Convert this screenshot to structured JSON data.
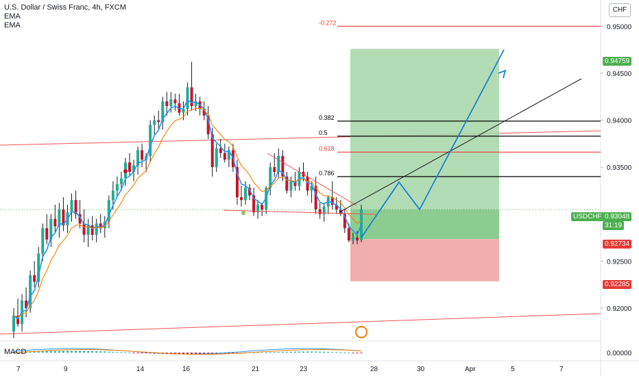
{
  "header": {
    "title": "U.S. Dollar / Swiss Franc, 4h, FXCM",
    "indicator_1": "EMA",
    "indicator_2": "EMA"
  },
  "currency_button": "CHF",
  "price_axis": {
    "ticks": [
      "0.95000",
      "0.94500",
      "0.94000",
      "0.93500",
      "0.92500",
      "0.92000"
    ],
    "target_label": "0.94759",
    "symbol": "USDCHF",
    "last_price": "0.93048",
    "countdown": "31:19",
    "entry_label": "0.92734",
    "stop_label": "0.92285",
    "macd_tick": "0.00000"
  },
  "time_axis": {
    "ticks": [
      "7",
      "9",
      "14",
      "16",
      "21",
      "23",
      "28",
      "30",
      "Apr",
      "5",
      "7"
    ]
  },
  "fib": {
    "levels": [
      {
        "label": "-0.272",
        "price": 0.95
      },
      {
        "label": "0.382",
        "price": 0.9399
      },
      {
        "label": "0.5",
        "price": 0.9383
      },
      {
        "label": "0.618",
        "price": 0.9366
      },
      {
        "label": "0.786",
        "price": 0.934
      }
    ]
  },
  "macd": {
    "label": "MACD"
  },
  "colors": {
    "up": "#22ab94",
    "down": "#c4142d",
    "ema_fast": "#2196f3",
    "ema_slow": "#f57c00",
    "profit_zone": "#a5d6a7",
    "loss_zone": "#ef9a9a",
    "fib_red": "#e53935",
    "fib_black": "#000000",
    "arrow": "#1e7ed4",
    "channel": "#ef5350",
    "price_pill": "#4caf50",
    "stop_pill": "#e53935"
  },
  "chart_data": {
    "type": "candlestick",
    "ylim": [
      0.9165,
      0.9525
    ],
    "x_ticks": [
      "7",
      "9",
      "14",
      "16",
      "21",
      "23",
      "28",
      "30",
      "Apr",
      "5",
      "7"
    ],
    "candles": [
      [
        0.9175,
        0.92,
        0.9168,
        0.9192
      ],
      [
        0.9192,
        0.921,
        0.918,
        0.9183
      ],
      [
        0.9183,
        0.9215,
        0.9175,
        0.9208
      ],
      [
        0.9208,
        0.9222,
        0.919,
        0.92
      ],
      [
        0.92,
        0.924,
        0.9195,
        0.9235
      ],
      [
        0.9235,
        0.925,
        0.9222,
        0.9228
      ],
      [
        0.9228,
        0.9265,
        0.9222,
        0.9258
      ],
      [
        0.9258,
        0.929,
        0.925,
        0.9285
      ],
      [
        0.9285,
        0.93,
        0.9268,
        0.9273
      ],
      [
        0.9273,
        0.93,
        0.9265,
        0.9295
      ],
      [
        0.9295,
        0.931,
        0.928,
        0.9287
      ],
      [
        0.9287,
        0.9312,
        0.9275,
        0.9305
      ],
      [
        0.9305,
        0.9318,
        0.9282,
        0.9288
      ],
      [
        0.9288,
        0.931,
        0.928,
        0.9302
      ],
      [
        0.9302,
        0.9322,
        0.9292,
        0.9315
      ],
      [
        0.9315,
        0.9325,
        0.9295,
        0.93
      ],
      [
        0.93,
        0.9315,
        0.9285,
        0.929
      ],
      [
        0.929,
        0.9305,
        0.927,
        0.9278
      ],
      [
        0.9278,
        0.9295,
        0.9265,
        0.9288
      ],
      [
        0.9288,
        0.9298,
        0.9272,
        0.9278
      ],
      [
        0.9278,
        0.9295,
        0.927,
        0.929
      ],
      [
        0.929,
        0.93,
        0.928,
        0.9285
      ],
      [
        0.9285,
        0.9298,
        0.9275,
        0.9292
      ],
      [
        0.9292,
        0.932,
        0.9285,
        0.9315
      ],
      [
        0.9315,
        0.9335,
        0.9305,
        0.9325
      ],
      [
        0.9325,
        0.934,
        0.9318,
        0.9332
      ],
      [
        0.9332,
        0.9345,
        0.9325,
        0.9338
      ],
      [
        0.9338,
        0.936,
        0.933,
        0.9355
      ],
      [
        0.9355,
        0.9365,
        0.934,
        0.9345
      ],
      [
        0.9345,
        0.9358,
        0.9335,
        0.9352
      ],
      [
        0.9352,
        0.9372,
        0.9342,
        0.9368
      ],
      [
        0.9368,
        0.9375,
        0.935,
        0.9358
      ],
      [
        0.9358,
        0.9365,
        0.9345,
        0.9362
      ],
      [
        0.9362,
        0.94,
        0.9355,
        0.9395
      ],
      [
        0.9395,
        0.9405,
        0.9385,
        0.94
      ],
      [
        0.94,
        0.941,
        0.939,
        0.9398
      ],
      [
        0.9398,
        0.9425,
        0.939,
        0.942
      ],
      [
        0.942,
        0.943,
        0.9405,
        0.9415
      ],
      [
        0.9415,
        0.943,
        0.9408,
        0.9422
      ],
      [
        0.9422,
        0.9428,
        0.941,
        0.9418
      ],
      [
        0.9418,
        0.9428,
        0.9405,
        0.9408
      ],
      [
        0.9408,
        0.942,
        0.94,
        0.9412
      ],
      [
        0.9412,
        0.944,
        0.9405,
        0.9435
      ],
      [
        0.9435,
        0.9462,
        0.941,
        0.9415
      ],
      [
        0.9415,
        0.9428,
        0.941,
        0.942
      ],
      [
        0.942,
        0.9425,
        0.9405,
        0.9412
      ],
      [
        0.9412,
        0.942,
        0.94,
        0.9405
      ],
      [
        0.9405,
        0.9415,
        0.938,
        0.9385
      ],
      [
        0.9385,
        0.9392,
        0.934,
        0.935
      ],
      [
        0.935,
        0.9375,
        0.9345,
        0.937
      ],
      [
        0.937,
        0.938,
        0.936,
        0.9365
      ],
      [
        0.9365,
        0.9375,
        0.9355,
        0.9358
      ],
      [
        0.9358,
        0.9372,
        0.935,
        0.9368
      ],
      [
        0.9368,
        0.9375,
        0.9345,
        0.935
      ],
      [
        0.935,
        0.9358,
        0.931,
        0.9318
      ],
      [
        0.9318,
        0.933,
        0.9308,
        0.9315
      ],
      [
        0.9315,
        0.9335,
        0.931,
        0.9328
      ],
      [
        0.9328,
        0.9332,
        0.9315,
        0.932
      ],
      [
        0.932,
        0.9328,
        0.9298,
        0.9302
      ],
      [
        0.9302,
        0.9315,
        0.9295,
        0.931
      ],
      [
        0.931,
        0.9312,
        0.9298,
        0.9305
      ],
      [
        0.9305,
        0.933,
        0.93,
        0.9328
      ],
      [
        0.9328,
        0.9355,
        0.932,
        0.935
      ],
      [
        0.935,
        0.9365,
        0.934,
        0.9345
      ],
      [
        0.9345,
        0.937,
        0.9338,
        0.9362
      ],
      [
        0.9362,
        0.9368,
        0.9335,
        0.934
      ],
      [
        0.934,
        0.9345,
        0.9322,
        0.9325
      ],
      [
        0.9325,
        0.934,
        0.9318,
        0.9335
      ],
      [
        0.9335,
        0.9345,
        0.9325,
        0.933
      ],
      [
        0.933,
        0.935,
        0.9325,
        0.9345
      ],
      [
        0.9345,
        0.9355,
        0.9335,
        0.934
      ],
      [
        0.934,
        0.9345,
        0.932,
        0.9325
      ],
      [
        0.9325,
        0.9335,
        0.9312,
        0.933
      ],
      [
        0.933,
        0.934,
        0.93,
        0.9305
      ],
      [
        0.9305,
        0.9312,
        0.9295,
        0.93
      ],
      [
        0.93,
        0.9312,
        0.9292,
        0.9308
      ],
      [
        0.9308,
        0.932,
        0.93,
        0.9318
      ],
      [
        0.9318,
        0.9335,
        0.9305,
        0.931
      ],
      [
        0.931,
        0.9318,
        0.93,
        0.9305
      ],
      [
        0.9305,
        0.9315,
        0.9298,
        0.93
      ],
      [
        0.93,
        0.9305,
        0.928,
        0.9285
      ],
      [
        0.9285,
        0.929,
        0.927,
        0.9272
      ],
      [
        0.9272,
        0.928,
        0.9268,
        0.9275
      ],
      [
        0.9275,
        0.9282,
        0.9268,
        0.9272
      ],
      [
        0.9272,
        0.931,
        0.927,
        0.9305
      ]
    ],
    "ema_fast_label": "EMA",
    "ema_slow_label": "EMA",
    "position": {
      "target": 0.94759,
      "entry": 0.92734,
      "stop": 0.92285,
      "last": 0.93048
    },
    "projection_path": [
      [
        0.9275,
        0
      ],
      [
        0.933,
        1
      ],
      [
        0.9305,
        2
      ],
      [
        0.9475,
        3
      ]
    ]
  }
}
